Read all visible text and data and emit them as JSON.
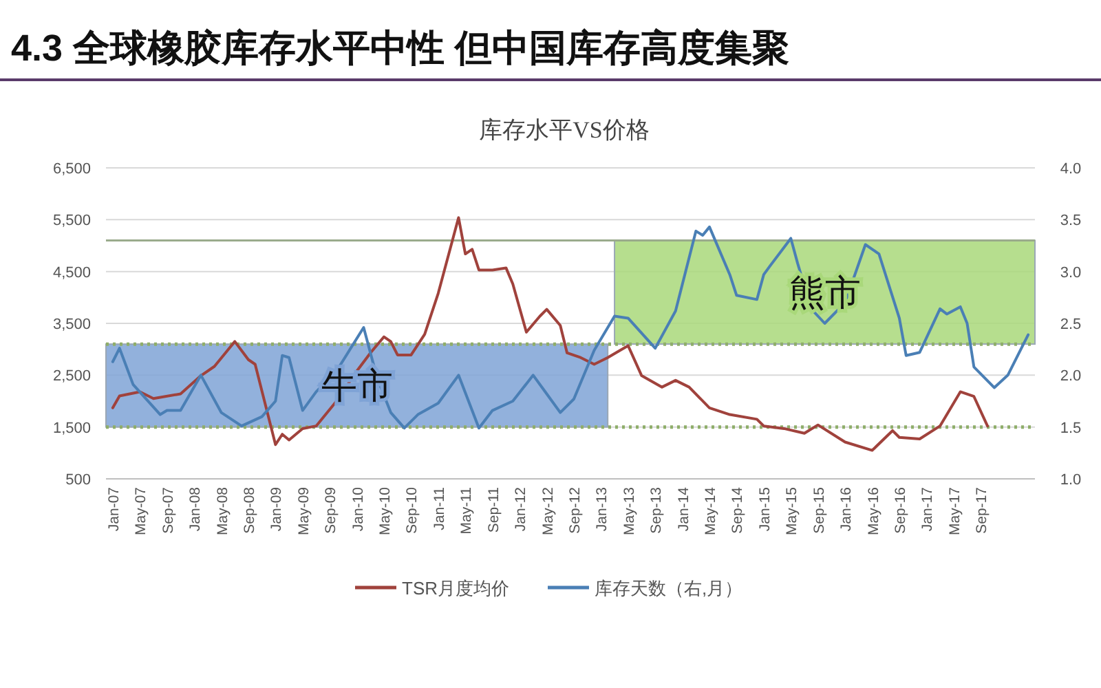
{
  "chart_data": {
    "type": "line",
    "title": "4.3 全球橡胶库存水平中性 但中国库存高度集聚",
    "subtitle": "库存水平VS价格",
    "x": [
      "2007-01",
      "2007-02",
      "2007-05",
      "2007-07",
      "2007-11",
      "2008-02",
      "2008-04",
      "2008-07",
      "2008-09",
      "2008-10",
      "2009-01",
      "2009-02",
      "2009-03",
      "2009-05",
      "2009-07",
      "2009-10",
      "2010-01",
      "2010-03",
      "2010-05",
      "2010-06",
      "2010-07",
      "2010-09",
      "2010-11",
      "2011-01",
      "2011-04",
      "2011-05",
      "2011-06",
      "2011-07",
      "2011-09",
      "2011-11",
      "2011-12",
      "2012-02",
      "2012-04",
      "2012-05",
      "2012-07",
      "2012-08",
      "2012-10",
      "2012-12",
      "2013-02",
      "2013-05",
      "2013-07",
      "2013-10",
      "2013-12",
      "2014-02",
      "2014-05",
      "2014-08",
      "2014-12",
      "2015-01",
      "2015-04",
      "2015-07",
      "2015-09",
      "2016-01",
      "2016-05",
      "2016-08",
      "2016-09",
      "2016-12",
      "2017-03",
      "2017-06",
      "2017-08",
      "2017-10"
    ],
    "series": [
      {
        "name": "TSR月度均价",
        "color": "#a0423c",
        "values": [
          1870,
          2100,
          2180,
          2050,
          2140,
          2490,
          2670,
          3150,
          2800,
          2710,
          1160,
          1360,
          1250,
          1470,
          1520,
          2000,
          2580,
          2930,
          3240,
          3150,
          2890,
          2890,
          3290,
          4080,
          5540,
          4840,
          4930,
          4530,
          4530,
          4570,
          4260,
          3330,
          3640,
          3770,
          3460,
          2930,
          2840,
          2710,
          2840,
          3070,
          2490,
          2270,
          2400,
          2270,
          1870,
          1740,
          1650,
          1520,
          1470,
          1380,
          1540,
          1210,
          1050,
          1430,
          1300,
          1270,
          1520,
          2180,
          2090,
          1520
        ]
      },
      {
        "name": "库存天数（右,月）",
        "color": "#4a7fb5",
        "axis": "y2",
        "x": [
          "2007-01",
          "2007-02",
          "2007-04",
          "2007-08",
          "2007-09",
          "2007-11",
          "2008-02",
          "2008-05",
          "2008-08",
          "2008-11",
          "2009-01",
          "2009-02",
          "2009-03",
          "2009-05",
          "2009-07",
          "2009-10",
          "2010-02",
          "2010-04",
          "2010-06",
          "2010-08",
          "2010-10",
          "2011-01",
          "2011-04",
          "2011-07",
          "2011-09",
          "2011-12",
          "2012-03",
          "2012-05",
          "2012-07",
          "2012-09",
          "2012-12",
          "2013-03",
          "2013-05",
          "2013-09",
          "2013-12",
          "2014-03",
          "2014-04",
          "2014-05",
          "2014-08",
          "2014-09",
          "2014-12",
          "2015-01",
          "2015-02",
          "2015-05",
          "2015-06",
          "2015-08",
          "2015-10",
          "2016-01",
          "2016-04",
          "2016-06",
          "2016-09",
          "2016-10",
          "2016-12",
          "2017-03",
          "2017-04",
          "2017-06",
          "2017-07",
          "2017-08",
          "2017-11",
          "2018-01",
          "2018-04"
        ],
        "values": [
          2.13,
          2.26,
          1.91,
          1.62,
          1.66,
          1.66,
          2.0,
          1.64,
          1.51,
          1.6,
          1.75,
          2.19,
          2.17,
          1.66,
          1.84,
          2.04,
          2.46,
          1.97,
          1.64,
          1.49,
          1.62,
          1.73,
          2.0,
          1.49,
          1.66,
          1.75,
          2.0,
          1.82,
          1.64,
          1.77,
          2.24,
          2.57,
          2.55,
          2.26,
          2.62,
          3.39,
          3.35,
          3.43,
          2.97,
          2.77,
          2.73,
          2.97,
          3.06,
          3.32,
          3.08,
          2.64,
          2.5,
          2.7,
          3.26,
          3.17,
          2.55,
          2.19,
          2.22,
          2.64,
          2.59,
          2.66,
          2.5,
          2.08,
          1.88,
          2.0,
          2.39
        ]
      }
    ],
    "xlim": [
      "2006-12",
      "2018-05"
    ],
    "xticks": [
      {
        "value": "2007-01",
        "label": "Jan-07"
      },
      {
        "value": "2007-05",
        "label": "May-07"
      },
      {
        "value": "2007-09",
        "label": "Sep-07"
      },
      {
        "value": "2008-01",
        "label": "Jan-08"
      },
      {
        "value": "2008-05",
        "label": "May-08"
      },
      {
        "value": "2008-09",
        "label": "Sep-08"
      },
      {
        "value": "2009-01",
        "label": "Jan-09"
      },
      {
        "value": "2009-05",
        "label": "May-09"
      },
      {
        "value": "2009-09",
        "label": "Sep-09"
      },
      {
        "value": "2010-01",
        "label": "Jan-10"
      },
      {
        "value": "2010-05",
        "label": "May-10"
      },
      {
        "value": "2010-09",
        "label": "Sep-10"
      },
      {
        "value": "2011-01",
        "label": "Jan-11"
      },
      {
        "value": "2011-05",
        "label": "May-11"
      },
      {
        "value": "2011-09",
        "label": "Sep-11"
      },
      {
        "value": "2012-01",
        "label": "Jan-12"
      },
      {
        "value": "2012-05",
        "label": "May-12"
      },
      {
        "value": "2012-09",
        "label": "Sep-12"
      },
      {
        "value": "2013-01",
        "label": "Jan-13"
      },
      {
        "value": "2013-05",
        "label": "May-13"
      },
      {
        "value": "2013-09",
        "label": "Sep-13"
      },
      {
        "value": "2014-01",
        "label": "Jan-14"
      },
      {
        "value": "2014-05",
        "label": "May-14"
      },
      {
        "value": "2014-09",
        "label": "Sep-14"
      },
      {
        "value": "2015-01",
        "label": "Jan-15"
      },
      {
        "value": "2015-05",
        "label": "May-15"
      },
      {
        "value": "2015-09",
        "label": "Sep-15"
      },
      {
        "value": "2016-01",
        "label": "Jan-16"
      },
      {
        "value": "2016-05",
        "label": "May-16"
      },
      {
        "value": "2016-09",
        "label": "Sep-16"
      },
      {
        "value": "2017-01",
        "label": "Jan-17"
      },
      {
        "value": "2017-05",
        "label": "May-17"
      },
      {
        "value": "2017-09",
        "label": "Sep-17"
      }
    ],
    "ylim": [
      500,
      6500
    ],
    "yticks": [
      500,
      {
        "value": 1500,
        "label": "1,500"
      },
      {
        "value": 2500,
        "label": "2,500"
      },
      {
        "value": 3500,
        "label": "3,500"
      },
      {
        "value": 4500,
        "label": "4,500"
      },
      {
        "value": 5500,
        "label": "5,500"
      },
      {
        "value": 6500,
        "label": "6,500"
      }
    ],
    "y2lim": [
      1,
      4
    ],
    "y2ticks": [
      {
        "value": 1,
        "label": "1.0"
      },
      1.5,
      {
        "value": 2,
        "label": "2.0"
      },
      2.5,
      {
        "value": 3,
        "label": "3.0"
      },
      3.5,
      {
        "value": 4,
        "label": "4.0"
      }
    ],
    "ref_lines": [
      {
        "axis": "y",
        "value": 1500,
        "color": "#8fae6a",
        "line_style": "dotted"
      },
      {
        "axis": "y",
        "value": 3100,
        "color": "#8fae6a",
        "line_style": "dotted"
      },
      {
        "axis": "y2",
        "value": 3.3,
        "color": "#9aab8c",
        "line_style": "solid"
      }
    ],
    "bands": [
      {
        "axis": "x",
        "from": "2006-12",
        "to": "2013-02",
        "label": "牛市",
        "color": "#7fa3d6"
      },
      {
        "axis": "x",
        "from": "2013-03",
        "to": "2018-05",
        "label": "熊市",
        "color": "#a9d87a"
      }
    ],
    "grid": "y",
    "legend": "bottom",
    "line_style": "solid",
    "marker": "none"
  }
}
